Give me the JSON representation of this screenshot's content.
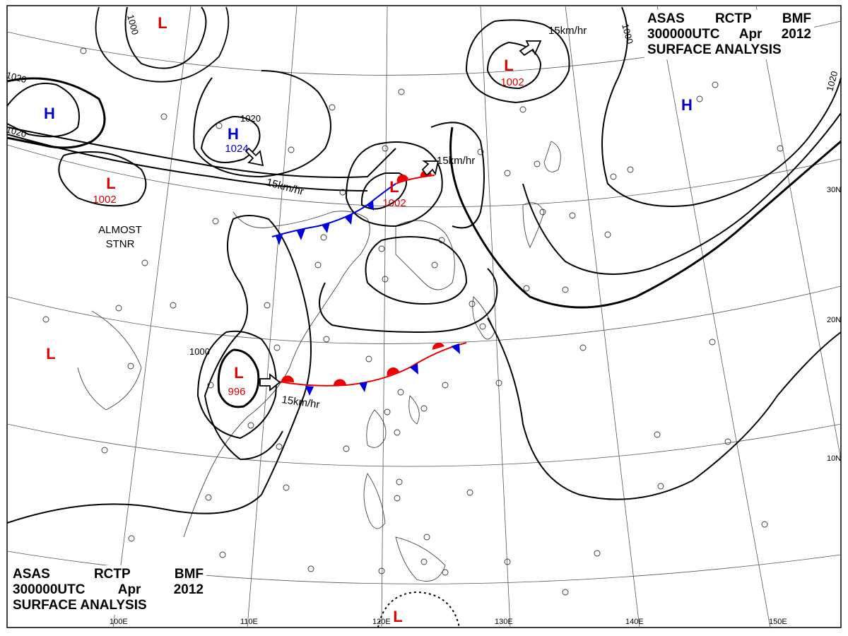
{
  "header": {
    "line1": [
      "ASAS",
      "RCTP",
      "BMF"
    ],
    "line2": [
      "300000UTC",
      "Apr",
      "2012"
    ],
    "line3": "SURFACE ANALYSIS"
  },
  "pressure_centers": [
    {
      "type": "H",
      "value": "1024",
      "id": "high-china"
    },
    {
      "type": "H",
      "value": "",
      "id": "high-nw"
    },
    {
      "type": "H",
      "value": "",
      "id": "high-ne"
    },
    {
      "type": "L",
      "value": "1002",
      "id": "low-japan"
    },
    {
      "type": "L",
      "value": "1002",
      "id": "low-tibet"
    },
    {
      "type": "L",
      "value": "1002",
      "id": "low-east-china"
    },
    {
      "type": "L",
      "value": "996",
      "id": "low-south-china"
    },
    {
      "type": "L",
      "value": "",
      "id": "low-north"
    },
    {
      "type": "L",
      "value": "",
      "id": "low-india"
    },
    {
      "type": "L",
      "value": "",
      "id": "low-south"
    }
  ],
  "isobar_labels": [
    "1000",
    "1000",
    "1020",
    "1020",
    "1020",
    "1020",
    "1000"
  ],
  "motion_labels": [
    "15km/hr",
    "15km/hr",
    "15km/hr",
    "15km/hr"
  ],
  "notes": [
    "ALMOST",
    "STNR"
  ],
  "lat_labels": [
    "30N",
    "20N",
    "10N"
  ],
  "lon_labels": [
    "100E",
    "110E",
    "120E",
    "130E",
    "140E",
    "150E"
  ],
  "colors": {
    "high": "#0000cc",
    "low": "#dd0000",
    "cold_front": "#0000dd",
    "warm_front": "#ee0000",
    "lines": "#000000"
  }
}
